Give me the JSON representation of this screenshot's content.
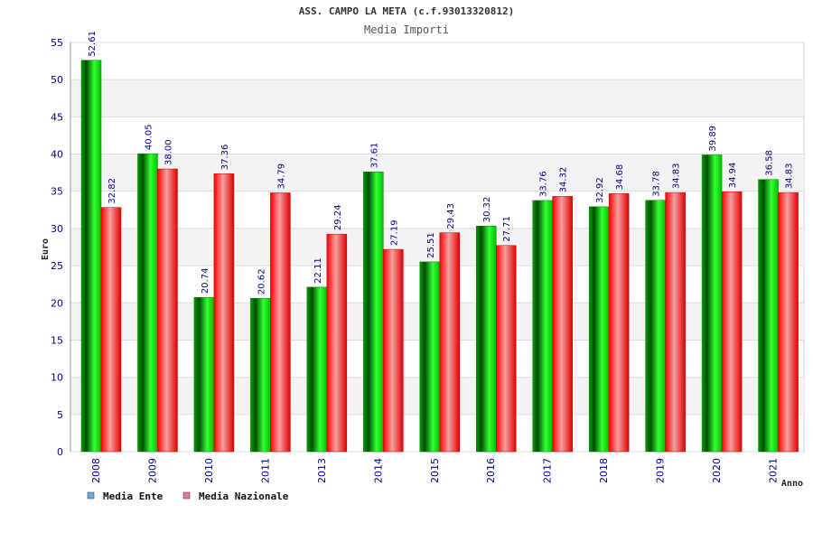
{
  "chart_data": {
    "type": "bar",
    "title": "ASS. CAMPO LA META (c.f.93013320812)",
    "subtitle": "Media Importi",
    "xlabel": "Anno",
    "ylabel": "Euro",
    "ylim": [
      0,
      55
    ],
    "yticks": [
      0,
      5,
      10,
      15,
      20,
      25,
      30,
      35,
      40,
      45,
      50,
      55
    ],
    "grid": true,
    "legend_position": "bottom-left",
    "categories": [
      "2008",
      "2009",
      "2010",
      "2011",
      "2013",
      "2014",
      "2015",
      "2016",
      "2017",
      "2018",
      "2019",
      "2020",
      "2021"
    ],
    "series": [
      {
        "name": "Media Ente",
        "color": "#00c000",
        "legend_color": "#6fa8dc",
        "values": [
          52.61,
          40.05,
          20.74,
          20.62,
          22.11,
          37.61,
          25.51,
          30.32,
          33.76,
          32.92,
          33.78,
          39.89,
          36.58
        ],
        "labels": [
          "52.61",
          "40.05",
          "20.74",
          "20.62",
          "22.11",
          "37.61",
          "25.51",
          "30.32",
          "33.76",
          "32.92",
          "33.78",
          "39.89",
          "36.58"
        ]
      },
      {
        "name": "Media Nazionale",
        "color": "#e00000",
        "legend_color": "#e07aa0",
        "values": [
          32.82,
          38.0,
          37.36,
          34.79,
          29.24,
          27.19,
          29.43,
          27.71,
          34.32,
          34.68,
          34.83,
          34.94,
          34.83
        ],
        "labels": [
          "32.82",
          "38.00",
          "37.36",
          "34.79",
          "29.24",
          "27.19",
          "29.43",
          "27.71",
          "34.32",
          "34.68",
          "34.83",
          "34.94",
          "34.83"
        ]
      }
    ]
  }
}
